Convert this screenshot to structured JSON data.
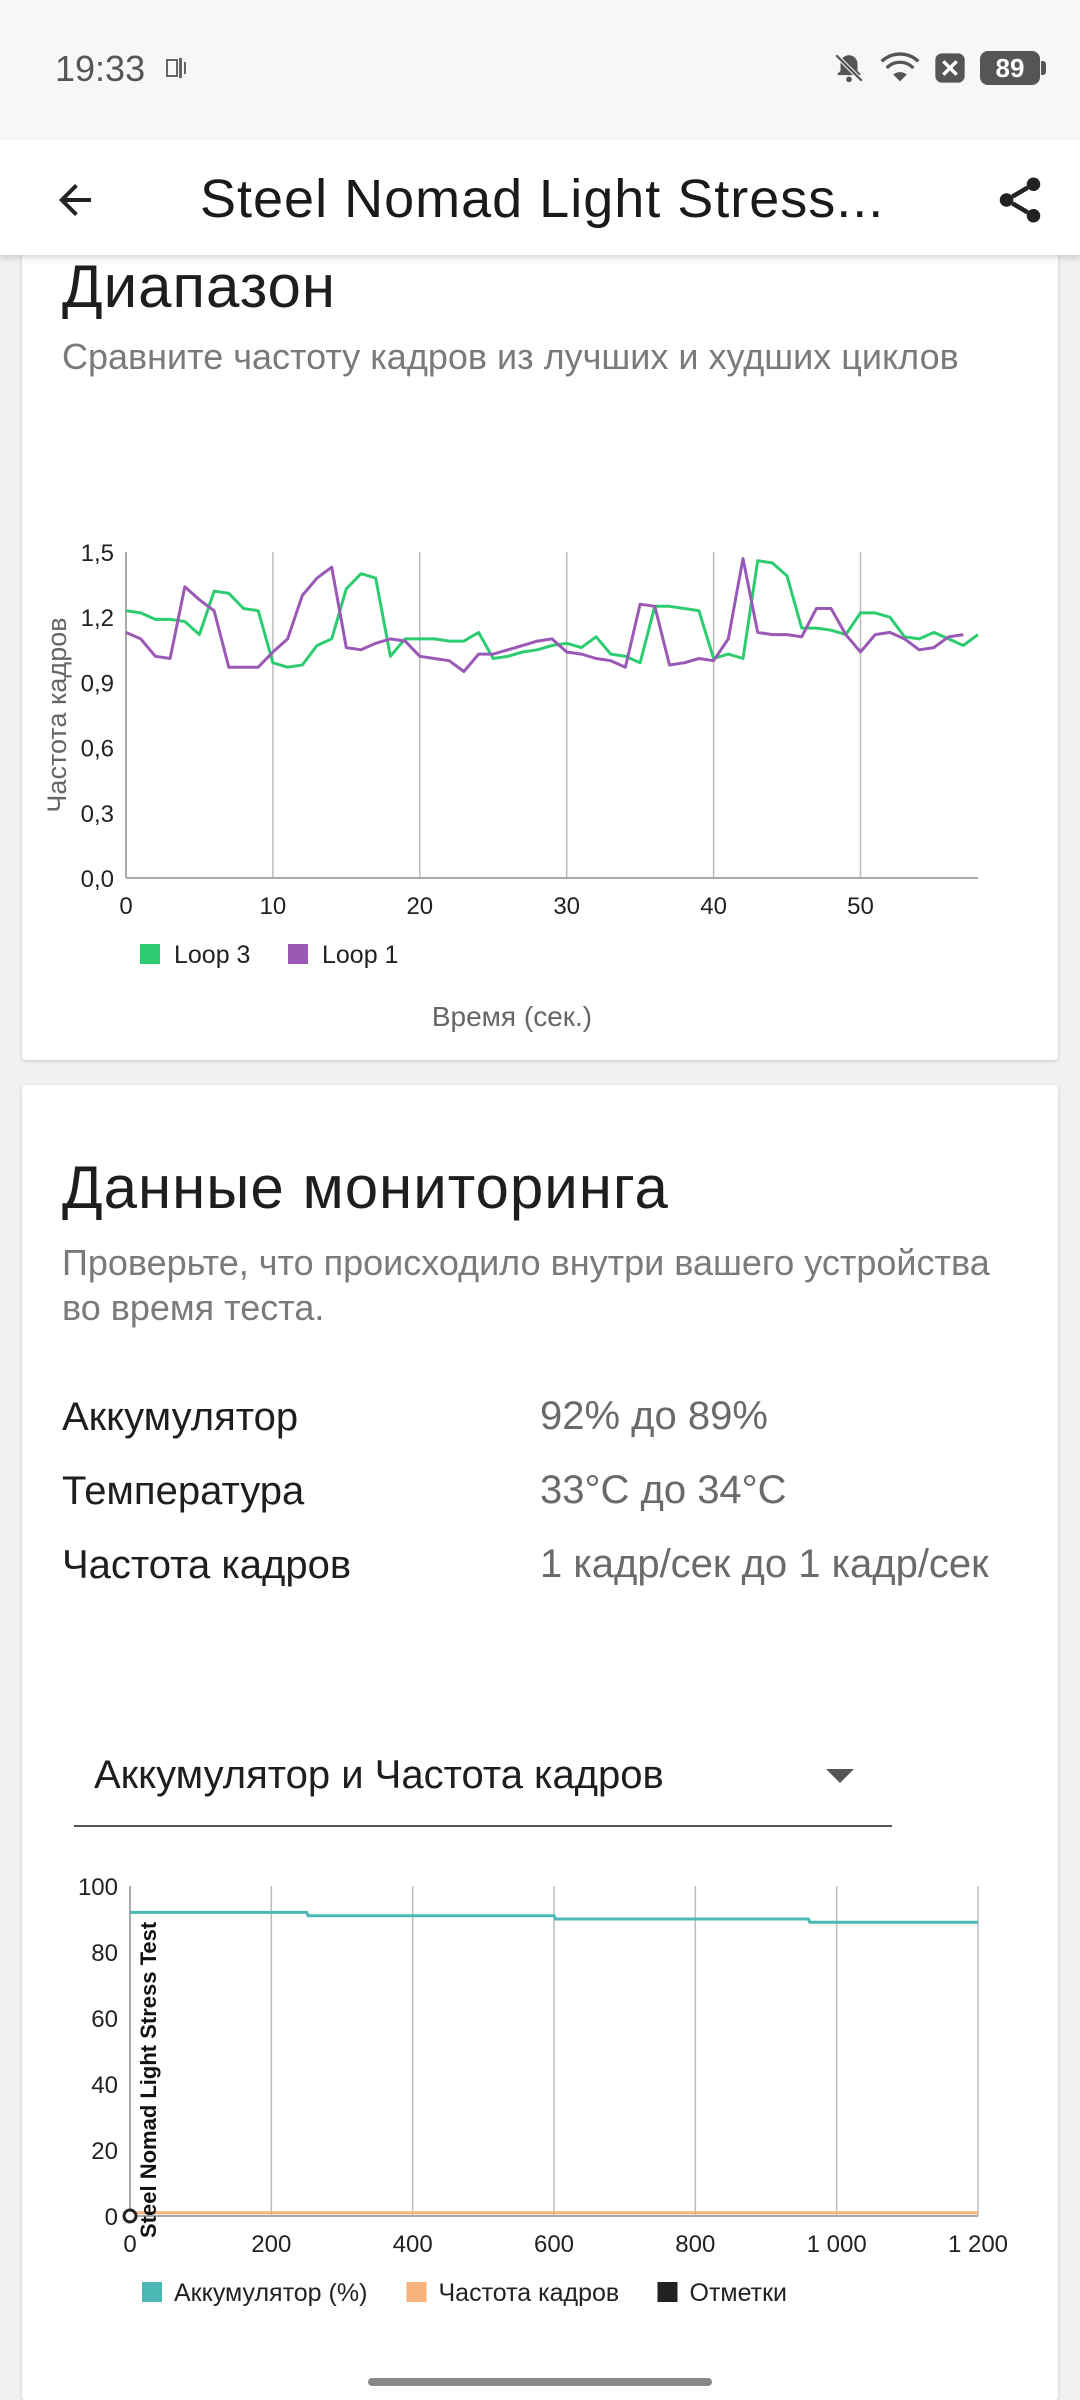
{
  "status_bar": {
    "time": "19:33",
    "battery": "89",
    "icons": [
      "notification-icon",
      "bell-off-icon",
      "wifi-icon",
      "close-box-icon",
      "battery-icon"
    ]
  },
  "app_bar": {
    "title": "Steel Nomad Light Stress...",
    "back_icon": "arrow-left-icon",
    "share_icon": "share-icon"
  },
  "range_card": {
    "title": "Диапазон",
    "subtitle": "Сравните частоту кадров из лучших и худших циклов"
  },
  "monitoring_card": {
    "title": "Данные мониторинга",
    "subtitle": "Проверьте, что происходило внутри вашего устройства во время теста.",
    "stats": [
      {
        "label": "Аккумулятор",
        "value": "92% до 89%"
      },
      {
        "label": "Температура",
        "value": "33°C до 34°C"
      },
      {
        "label": "Частота кадров",
        "value": "1 кадр/сек до 1 кадр/сек"
      }
    ],
    "dropdown_value": "Аккумулятор и Частота кадров"
  },
  "chart_data": [
    {
      "type": "line",
      "ylabel": "Частота кадров",
      "xlabel": "Время (сек.)",
      "ylim": [
        0,
        1.5
      ],
      "xlim": [
        0,
        58
      ],
      "yticks": [
        "0,0",
        "0,3",
        "0,6",
        "0,9",
        "1,2",
        "1,5"
      ],
      "xticks": [
        "0",
        "10",
        "20",
        "30",
        "40",
        "50"
      ],
      "grid": "vertical",
      "legend_placement": "bottom-left",
      "series": [
        {
          "name": "Loop 3",
          "color": "#2ecc71",
          "x": [
            0,
            1,
            2,
            3,
            4,
            5,
            6,
            7,
            8,
            9,
            10,
            11,
            12,
            13,
            14,
            15,
            16,
            17,
            18,
            19,
            20,
            21,
            22,
            23,
            24,
            25,
            26,
            27,
            28,
            29,
            30,
            31,
            32,
            33,
            34,
            35,
            36,
            37,
            38,
            39,
            40,
            41,
            42,
            43,
            44,
            45,
            46,
            47,
            48,
            49,
            50,
            51,
            52,
            53,
            54,
            55,
            56,
            57,
            58
          ],
          "values": [
            1.23,
            1.22,
            1.19,
            1.19,
            1.18,
            1.12,
            1.32,
            1.31,
            1.24,
            1.23,
            0.99,
            0.97,
            0.98,
            1.07,
            1.1,
            1.33,
            1.4,
            1.38,
            1.02,
            1.1,
            1.1,
            1.1,
            1.09,
            1.09,
            1.13,
            1.01,
            1.02,
            1.04,
            1.05,
            1.07,
            1.08,
            1.06,
            1.11,
            1.03,
            1.02,
            0.99,
            1.25,
            1.25,
            1.24,
            1.23,
            1.01,
            1.03,
            1.01,
            1.46,
            1.45,
            1.39,
            1.15,
            1.15,
            1.14,
            1.12,
            1.22,
            1.22,
            1.2,
            1.11,
            1.1,
            1.13,
            1.1,
            1.07,
            1.12
          ]
        },
        {
          "name": "Loop 1",
          "color": "#9b59b6",
          "x": [
            0,
            1,
            2,
            3,
            4,
            5,
            6,
            7,
            8,
            9,
            10,
            11,
            12,
            13,
            14,
            15,
            16,
            17,
            18,
            19,
            20,
            21,
            22,
            23,
            24,
            25,
            26,
            27,
            28,
            29,
            30,
            31,
            32,
            33,
            34,
            35,
            36,
            37,
            38,
            39,
            40,
            41,
            42,
            43,
            44,
            45,
            46,
            47,
            48,
            49,
            50,
            51,
            52,
            53,
            54,
            55,
            56,
            57
          ],
          "values": [
            1.13,
            1.1,
            1.02,
            1.01,
            1.34,
            1.28,
            1.23,
            0.97,
            0.97,
            0.97,
            1.04,
            1.1,
            1.3,
            1.38,
            1.43,
            1.06,
            1.05,
            1.08,
            1.1,
            1.09,
            1.02,
            1.01,
            1.0,
            0.95,
            1.03,
            1.03,
            1.05,
            1.07,
            1.09,
            1.1,
            1.04,
            1.03,
            1.01,
            1.0,
            0.97,
            1.26,
            1.25,
            0.98,
            0.99,
            1.01,
            1.0,
            1.1,
            1.47,
            1.13,
            1.12,
            1.12,
            1.11,
            1.24,
            1.24,
            1.12,
            1.04,
            1.12,
            1.13,
            1.1,
            1.05,
            1.06,
            1.11,
            1.12
          ]
        }
      ]
    },
    {
      "type": "line",
      "xlabel": "",
      "ylim": [
        0,
        100
      ],
      "xlim": [
        0,
        1200
      ],
      "yticks": [
        "0",
        "20",
        "40",
        "60",
        "80",
        "100"
      ],
      "xticks": [
        "0",
        "200",
        "400",
        "600",
        "800",
        "1 000",
        "1 200"
      ],
      "grid": "vertical",
      "legend_placement": "bottom-left",
      "marker_label": "Steel Nomad Light Stress Test",
      "series": [
        {
          "name": "Аккумулятор (%)",
          "color": "#4cb8b3",
          "x": [
            0,
            250,
            252,
            600,
            602,
            960,
            962,
            1200
          ],
          "values": [
            92,
            92,
            91,
            91,
            90,
            90,
            89,
            89
          ]
        },
        {
          "name": "Частота кадров",
          "color": "#f7b27a",
          "x": [
            0,
            100,
            200,
            300,
            400,
            500,
            600,
            700,
            800,
            900,
            1000,
            1100,
            1200
          ],
          "values": [
            1,
            1,
            1,
            1,
            1,
            1,
            1,
            1,
            1,
            1,
            1,
            1,
            1
          ]
        },
        {
          "name": "Отметки",
          "color": "#222222",
          "x": [
            0
          ],
          "values": [
            0
          ]
        }
      ]
    }
  ]
}
